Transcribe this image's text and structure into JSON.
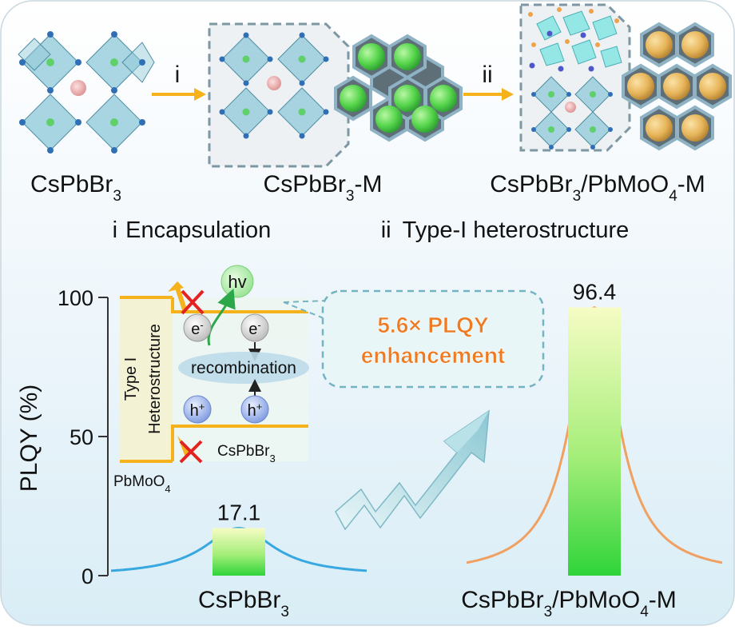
{
  "top": {
    "compounds": [
      {
        "base": "CsPbBr",
        "sub": "3",
        "rest": ""
      },
      {
        "base": "CsPbBr",
        "sub": "3",
        "rest": "-M"
      },
      {
        "base": "CsPbBr",
        "sub": "3",
        "mid": "/PbMoO",
        "sub2": "4",
        "rest": "-M"
      }
    ],
    "step_labels": [
      "i",
      "ii"
    ],
    "steps": [
      {
        "num": "i",
        "text": "Encapsulation"
      },
      {
        "num": "ii",
        "text": "Type-I heterostructure"
      }
    ]
  },
  "inset": {
    "hv": "hv",
    "electron": "e",
    "electron_sup": "-",
    "hole": "h",
    "hole_sup": "+",
    "recombination": "recombination",
    "type_label_1": "Type I",
    "type_label_2": "Heterostructure",
    "inner_material": {
      "base": "CsPbBr",
      "sub": "3"
    },
    "outer_material": {
      "base": "PbMoO",
      "sub": "4"
    }
  },
  "callout": {
    "line1": "5.6× PLQY",
    "line2": "enhancement"
  },
  "chart_data": {
    "type": "bar",
    "categories": [
      {
        "base": "CsPbBr",
        "sub": "3",
        "mid": "",
        "sub2": "",
        "rest": ""
      },
      {
        "base": "CsPbBr",
        "sub": "3",
        "mid": "/PbMoO",
        "sub2": "4",
        "rest": "-M"
      }
    ],
    "values": [
      17.1,
      96.4
    ],
    "value_labels": [
      "17.1",
      "96.4"
    ],
    "ylabel": "PLQY (%)",
    "yticks": [
      0,
      50,
      100
    ],
    "ylim": [
      0,
      100
    ],
    "colors": {
      "bar": "#3fdc3f",
      "curve1": "#38a8e0",
      "curve2": "#f0a060",
      "accent": "#f5b21a",
      "callout_text": "#ee7a22"
    }
  }
}
